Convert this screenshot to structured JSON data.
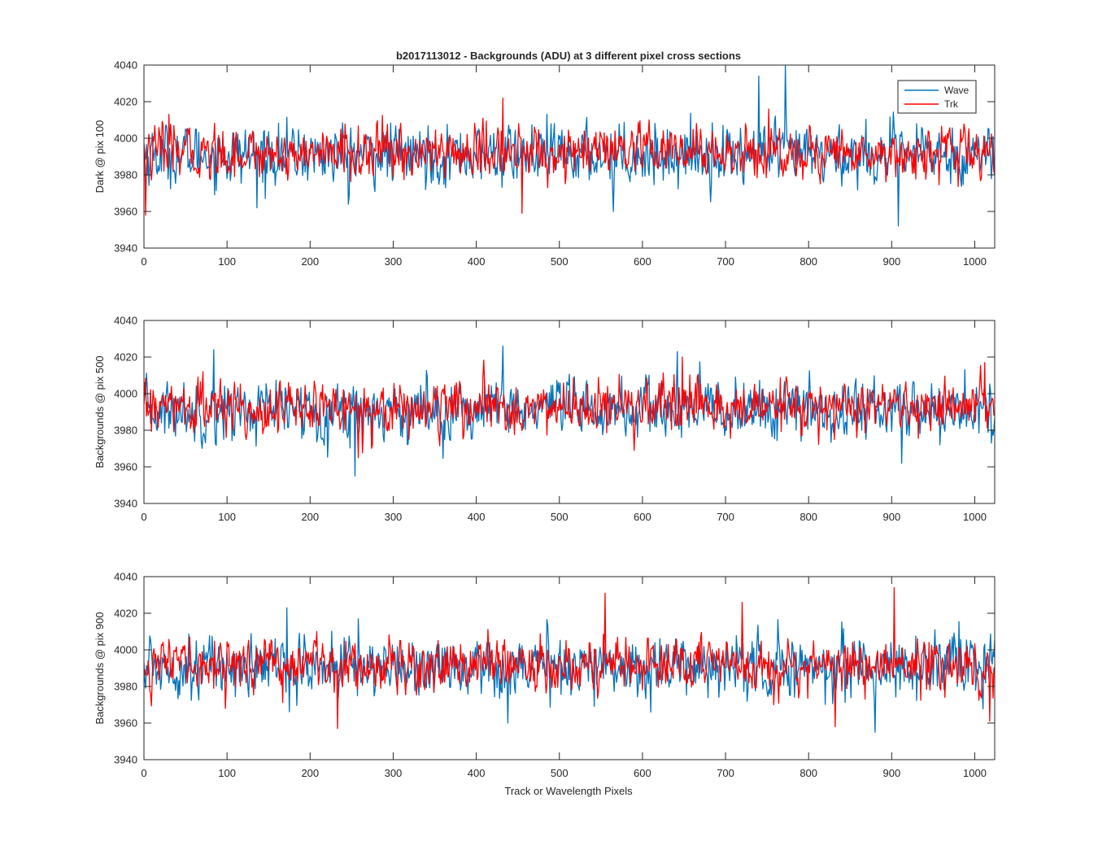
{
  "figure": {
    "title": "b2017113012 - Backgrounds (ADU) at 3 different pixel cross sections",
    "xlabel": "Track or Wavelength Pixels"
  },
  "legend": {
    "entries": [
      {
        "label": "Wave",
        "color": "#0072BD"
      },
      {
        "label": "Trk",
        "color": "#FF0000"
      }
    ]
  },
  "chart_data": [
    {
      "type": "line",
      "ylabel": "Dark @ pix 100",
      "xlim": [
        0,
        1024
      ],
      "ylim": [
        3940,
        4040
      ],
      "xticks": [
        0,
        100,
        200,
        300,
        400,
        500,
        600,
        700,
        800,
        900,
        1000
      ],
      "yticks": [
        3940,
        3960,
        3980,
        4000,
        4020,
        4040
      ],
      "series": [
        {
          "name": "Wave",
          "color": "#0072BD",
          "mean": 3991,
          "sd": 8,
          "spikes": [
            [
              740,
              4034
            ],
            [
              772,
              4040
            ],
            [
              908,
              3952
            ],
            [
              246,
              3964
            ],
            [
              565,
              3960
            ],
            [
              136,
              3962
            ]
          ]
        },
        {
          "name": "Trk",
          "color": "#FF0000",
          "mean": 3992,
          "sd": 7,
          "spikes": [
            [
              2,
              3958
            ],
            [
              30,
              4013
            ],
            [
              432,
              4022
            ],
            [
              455,
              3959
            ],
            [
              752,
              4016
            ],
            [
              1024,
              3980
            ]
          ]
        }
      ]
    },
    {
      "type": "line",
      "ylabel": "Backgrounds @ pix 500",
      "xlim": [
        0,
        1024
      ],
      "ylim": [
        3940,
        4040
      ],
      "xticks": [
        0,
        100,
        200,
        300,
        400,
        500,
        600,
        700,
        800,
        900,
        1000
      ],
      "yticks": [
        3940,
        3960,
        3980,
        4000,
        4020,
        4040
      ],
      "series": [
        {
          "name": "Wave",
          "color": "#0072BD",
          "mean": 3991,
          "sd": 8,
          "spikes": [
            [
              84,
              4024
            ],
            [
              254,
              3955
            ],
            [
              432,
              4026
            ],
            [
              642,
              4023
            ],
            [
              912,
              3962
            ],
            [
              1020,
              3973
            ]
          ]
        },
        {
          "name": "Trk",
          "color": "#FF0000",
          "mean": 3992,
          "sd": 7,
          "spikes": [
            [
              71,
              4012
            ],
            [
              648,
              4020
            ],
            [
              1012,
              4017
            ],
            [
              590,
              3969
            ],
            [
              258,
              3965
            ]
          ]
        }
      ]
    },
    {
      "type": "line",
      "ylabel": "Backgrounds @ pix 900",
      "xlim": [
        0,
        1024
      ],
      "ylim": [
        3940,
        4040
      ],
      "xticks": [
        0,
        100,
        200,
        300,
        400,
        500,
        600,
        700,
        800,
        900,
        1000
      ],
      "yticks": [
        3940,
        3960,
        3980,
        4000,
        4020,
        4040
      ],
      "series": [
        {
          "name": "Wave",
          "color": "#0072BD",
          "mean": 3991,
          "sd": 8,
          "spikes": [
            [
              172,
              4023
            ],
            [
              258,
              4017
            ],
            [
              438,
              3960
            ],
            [
              880,
              3955
            ],
            [
              610,
              3966
            ]
          ]
        },
        {
          "name": "Trk",
          "color": "#FF0000",
          "mean": 3992,
          "sd": 7,
          "spikes": [
            [
              233,
              3957
            ],
            [
              555,
              4031
            ],
            [
              720,
              4026
            ],
            [
              832,
              3958
            ],
            [
              903,
              4034
            ],
            [
              1018,
              3961
            ]
          ]
        }
      ]
    }
  ]
}
